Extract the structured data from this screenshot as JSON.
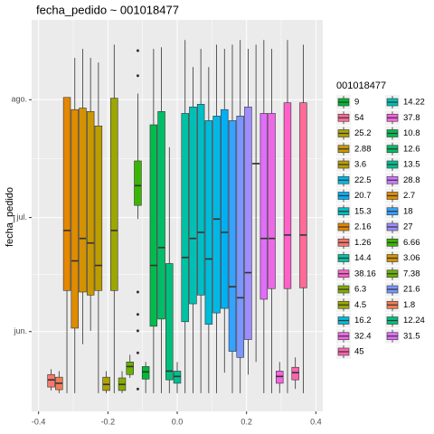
{
  "chart_data": {
    "type": "boxplot",
    "title": "fecha_pedido ~ 001018477",
    "y_label": "fecha_pedido",
    "legend_title": "001018477",
    "xlim": [
      -0.42,
      0.42
    ],
    "xticks": [
      -0.4,
      -0.2,
      {
        "value": 0,
        "label": "0.0"
      },
      0.2,
      0.4
    ],
    "ylim": [
      131,
      234
    ],
    "yticks": [
      {
        "value": 152,
        "label": "jun."
      },
      {
        "value": 182,
        "label": "jul."
      },
      {
        "value": 213,
        "label": "ago."
      }
    ],
    "grid": true,
    "boxes": [
      {
        "color": "#F8766D",
        "stats": [
          136.5,
          137.4,
          139.3,
          140.7,
          142.1
        ]
      },
      {
        "color": "#F27D52",
        "stats": [
          135.8,
          136.7,
          138.4,
          140,
          141.6
        ]
      },
      {
        "color": "#E58700",
        "stats": [
          135.8,
          162.8,
          178.6,
          213.6,
          213.6
        ]
      },
      {
        "color": "#DE8C00",
        "stats": [
          135.8,
          152.9,
          170.6,
          210.4,
          224
        ]
      },
      {
        "color": "#D49200",
        "stats": [
          148.7,
          162.4,
          176.5,
          210.8,
          226.4
        ]
      },
      {
        "color": "#C99800",
        "stats": [
          152.2,
          161.6,
          175.3,
          209.9,
          224
        ]
      },
      {
        "color": "#BB9D00",
        "stats": [
          135.8,
          162.8,
          169.4,
          206.1,
          222.8
        ]
      },
      {
        "color": "#ADA200",
        "stats": [
          135.8,
          136.5,
          138.1,
          140,
          141.6
        ]
      },
      {
        "color": "#9CA700",
        "stats": [
          135.8,
          162.8,
          178.6,
          213.4,
          227.5
        ]
      },
      {
        "color": "#86AC00",
        "stats": [
          135.8,
          136.5,
          138.1,
          139.8,
          141.6
        ]
      },
      {
        "color": "#6BB100",
        "stats": [
          139.8,
          140.7,
          142.8,
          144,
          145.9
        ]
      },
      {
        "color": "#39B600",
        "stats": [
          181.6,
          185.2,
          190.4,
          196.9,
          214.6
        ],
        "outliers": [
          225.9,
          219.3,
          162.4,
          156.5,
          152.2,
          146.4,
          136.9
        ]
      },
      {
        "color": "#00B935",
        "stats": [
          135.8,
          139.5,
          141.4,
          142.8,
          144
        ]
      },
      {
        "color": "#00BB4E",
        "stats": [
          135.8,
          153.4,
          169.4,
          206.4,
          226.4
        ]
      },
      {
        "color": "#00BE67",
        "stats": [
          135.8,
          155.3,
          174.1,
          209.9,
          226.8
        ]
      },
      {
        "color": "#00BF7D",
        "stats": [
          135.8,
          139.3,
          141.6,
          169.9,
          200.5
        ]
      },
      {
        "color": "#00C091",
        "stats": [
          135.8,
          138.4,
          140.2,
          141.6,
          144
        ]
      },
      {
        "color": "#00C1A3",
        "stats": [
          135.8,
          154.6,
          171.5,
          209.4,
          228.7
        ]
      },
      {
        "color": "#00C0B4",
        "stats": [
          135.8,
          159.3,
          176.5,
          211.1,
          221.6
        ]
      },
      {
        "color": "#00BFC4",
        "stats": [
          135.8,
          161.6,
          178.1,
          211.8,
          226.4
        ]
      },
      {
        "color": "#00BCD8",
        "stats": [
          135.8,
          153.9,
          171.1,
          207.5,
          221.6
        ]
      },
      {
        "color": "#00B8E7",
        "stats": [
          135.8,
          156.9,
          181.6,
          208.7,
          227.5
        ]
      },
      {
        "color": "#00B0F6",
        "stats": [
          141.2,
          158.1,
          178.1,
          210.4,
          226.4
        ]
      },
      {
        "color": "#35A2FF",
        "stats": [
          135.8,
          146.8,
          163.8,
          207.5,
          227.5
        ]
      },
      {
        "color": "#7997FF",
        "stats": [
          135.8,
          145.2,
          160.9,
          208.7,
          228.7
        ]
      },
      {
        "color": "#9D8DFF",
        "stats": [
          140.7,
          149.9,
          167.5,
          211.1,
          226.4
        ]
      },
      {
        "color": "#CF78FF",
        "stats": [
          144,
          196.2,
          196.2,
          196.2,
          227.5
        ]
      },
      {
        "color": "#E16DF8",
        "stats": [
          135.8,
          160.5,
          176.5,
          209.4,
          228.7
        ]
      },
      {
        "color": "#EE67E9",
        "stats": [
          135.8,
          163.3,
          176.5,
          209.4,
          226.4
        ]
      },
      {
        "color": "#F863DF",
        "stats": [
          135.8,
          138.4,
          140.2,
          141.6,
          144
        ]
      },
      {
        "color": "#FF61C9",
        "stats": [
          135.8,
          163.3,
          177.4,
          212.2,
          228.7
        ]
      },
      {
        "color": "#FF64B0",
        "stats": [
          136.9,
          139.3,
          141.2,
          142.6,
          145.2
        ]
      },
      {
        "color": "#FF6A98",
        "stats": [
          135.8,
          163.5,
          177.4,
          212.2,
          227.5
        ]
      }
    ],
    "legend": [
      {
        "name": "9",
        "color": "#00B935"
      },
      {
        "name": "54",
        "color": "#FF6A98"
      },
      {
        "name": "25.2",
        "color": "#ADA200"
      },
      {
        "name": "2.88",
        "color": "#C99800"
      },
      {
        "name": "3.6",
        "color": "#BB9D00"
      },
      {
        "name": "22.5",
        "color": "#00B8E7"
      },
      {
        "name": "20.7",
        "color": "#00B0F6"
      },
      {
        "name": "15.3",
        "color": "#00BFC4"
      },
      {
        "name": "2.16",
        "color": "#E58700"
      },
      {
        "name": "1.26",
        "color": "#F8766D"
      },
      {
        "name": "14.4",
        "color": "#00C1A3"
      },
      {
        "name": "38.16",
        "color": "#FF61C9"
      },
      {
        "name": "6.3",
        "color": "#86AC00"
      },
      {
        "name": "4.5",
        "color": "#9CA700"
      },
      {
        "name": "16.2",
        "color": "#00BCD8"
      },
      {
        "name": "32.4",
        "color": "#EE67E9"
      },
      {
        "name": "45",
        "color": "#FF64B0"
      },
      {
        "name": "14.22",
        "color": "#00C0B4"
      },
      {
        "name": "37.8",
        "color": "#F863DF"
      },
      {
        "name": "10.8",
        "color": "#00BB4E"
      },
      {
        "name": "12.6",
        "color": "#00BE67"
      },
      {
        "name": "13.5",
        "color": "#00C091"
      },
      {
        "name": "28.8",
        "color": "#CF78FF"
      },
      {
        "name": "2.7",
        "color": "#DE8C00"
      },
      {
        "name": "18",
        "color": "#35A2FF"
      },
      {
        "name": "27",
        "color": "#9D8DFF"
      },
      {
        "name": "6.66",
        "color": "#39B600"
      },
      {
        "name": "3.06",
        "color": "#D49200"
      },
      {
        "name": "7.38",
        "color": "#6BB100"
      },
      {
        "name": "21.6",
        "color": "#7997FF"
      },
      {
        "name": "1.8",
        "color": "#F27D52"
      },
      {
        "name": "12.24",
        "color": "#00BF7D"
      },
      {
        "name": "31.5",
        "color": "#E16DF8"
      }
    ]
  }
}
